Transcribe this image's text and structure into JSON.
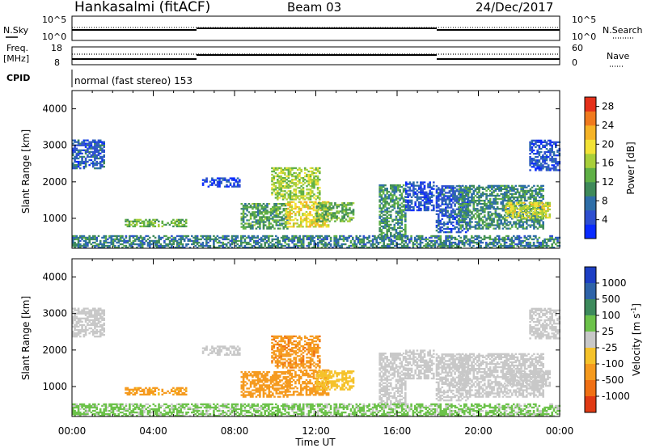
{
  "header": {
    "station": "Hankasalmi (fitACF)",
    "beam": "Beam 03",
    "date": "24/Dec/2017"
  },
  "status_panels": {
    "nsky_label": "N.Sky",
    "nsearch_label": "N.Search",
    "noise_ticks": [
      "10^5",
      "10^0"
    ],
    "freq_label_line1": "Freq.",
    "freq_label_line2": "[MHz]",
    "freq_ticks": [
      "18",
      "8"
    ],
    "nave_label": "Nave",
    "nave_ticks": [
      "60",
      "0"
    ],
    "cpid_label": "CPID",
    "cpid_text": "normal (fast stereo) 153"
  },
  "axes": {
    "xlabel": "Time UT",
    "ylabel": "Slant Range [km]",
    "xticks": [
      "00:00",
      "04:00",
      "08:00",
      "12:00",
      "16:00",
      "20:00",
      "00:00"
    ],
    "yticks": [
      "1000",
      "2000",
      "3000",
      "4000"
    ]
  },
  "colors": {
    "power": [
      "#0a2bff",
      "#2e4fd0",
      "#2e6ea8",
      "#3f8a5a",
      "#5fb046",
      "#a8cf3a",
      "#f2e236",
      "#f5b326",
      "#f07a1e",
      "#e5301a"
    ],
    "velocity": [
      "#1d3fc4",
      "#2e63a8",
      "#3d8a5c",
      "#6cc24a",
      "#c8c8c8",
      "#f5c22a",
      "#f59a1e",
      "#f07014",
      "#e03a14"
    ]
  },
  "power_colorbar": {
    "label": "Power [dB]",
    "ticks": [
      "4",
      "8",
      "12",
      "16",
      "20",
      "24",
      "28"
    ]
  },
  "velocity_colorbar": {
    "label": "Velocity [m s",
    "label_sup": "-1",
    "label_end": "]",
    "ticks": [
      "1000",
      "500",
      "100",
      "25",
      "-25",
      "-100",
      "-500",
      "-1000"
    ]
  },
  "chart_data": [
    {
      "type": "heatmap",
      "title": "Power",
      "x_unit": "hours UT",
      "y_unit": "km",
      "xlim": [
        0,
        24
      ],
      "ylim": [
        180,
        4500
      ],
      "value_unit": "dB",
      "regions": [
        {
          "t0": 0.0,
          "t1": 1.6,
          "r0": 2350,
          "r1": 3150,
          "val": 6
        },
        {
          "t0": 2.6,
          "t1": 5.6,
          "r0": 760,
          "r1": 950,
          "val": 14
        },
        {
          "t0": 6.4,
          "t1": 8.2,
          "r0": 1850,
          "r1": 2100,
          "val": 4
        },
        {
          "t0": 8.3,
          "t1": 10.6,
          "r0": 700,
          "r1": 1400,
          "val": 12
        },
        {
          "t0": 9.8,
          "t1": 12.2,
          "r0": 1500,
          "r1": 2400,
          "val": 16
        },
        {
          "t0": 10.5,
          "t1": 12.6,
          "r0": 750,
          "r1": 1450,
          "val": 20
        },
        {
          "t0": 12.0,
          "t1": 13.8,
          "r0": 900,
          "r1": 1400,
          "val": 13
        },
        {
          "t0": 15.1,
          "t1": 16.4,
          "r0": 400,
          "r1": 1900,
          "val": 11
        },
        {
          "t0": 16.4,
          "t1": 17.8,
          "r0": 1200,
          "r1": 2000,
          "val": 5
        },
        {
          "t0": 17.9,
          "t1": 19.5,
          "r0": 600,
          "r1": 1900,
          "val": 6
        },
        {
          "t0": 19.0,
          "t1": 23.2,
          "r0": 700,
          "r1": 1900,
          "val": 10
        },
        {
          "t0": 21.3,
          "t1": 23.5,
          "r0": 1000,
          "r1": 1450,
          "val": 18
        },
        {
          "t0": 22.5,
          "t1": 24.0,
          "r0": 2300,
          "r1": 3150,
          "val": 5
        },
        {
          "t0": 0.0,
          "t1": 24.0,
          "r0": 180,
          "r1": 500,
          "val": 9
        }
      ]
    },
    {
      "type": "heatmap",
      "title": "Velocity",
      "x_unit": "hours UT",
      "y_unit": "km",
      "xlim": [
        0,
        24
      ],
      "ylim": [
        180,
        4500
      ],
      "value_unit": "m s-1",
      "regions": [
        {
          "t0": 0.0,
          "t1": 1.6,
          "r0": 2350,
          "r1": 3150,
          "val": 0
        },
        {
          "t0": 2.6,
          "t1": 5.6,
          "r0": 760,
          "r1": 950,
          "val": -150
        },
        {
          "t0": 6.4,
          "t1": 8.2,
          "r0": 1850,
          "r1": 2100,
          "val": 0
        },
        {
          "t0": 8.3,
          "t1": 10.6,
          "r0": 700,
          "r1": 1400,
          "val": -200
        },
        {
          "t0": 9.8,
          "t1": 12.2,
          "r0": 1500,
          "r1": 2400,
          "val": -400
        },
        {
          "t0": 10.5,
          "t1": 12.6,
          "r0": 750,
          "r1": 1450,
          "val": -250
        },
        {
          "t0": 12.0,
          "t1": 13.8,
          "r0": 900,
          "r1": 1400,
          "val": -60
        },
        {
          "t0": 15.1,
          "t1": 16.4,
          "r0": 400,
          "r1": 1900,
          "val": 0
        },
        {
          "t0": 16.4,
          "t1": 17.8,
          "r0": 1200,
          "r1": 2000,
          "val": 0
        },
        {
          "t0": 17.9,
          "t1": 19.5,
          "r0": 600,
          "r1": 1900,
          "val": 0
        },
        {
          "t0": 19.0,
          "t1": 23.2,
          "r0": 700,
          "r1": 1900,
          "val": 0
        },
        {
          "t0": 21.3,
          "t1": 23.5,
          "r0": 1000,
          "r1": 1450,
          "val": 0
        },
        {
          "t0": 22.5,
          "t1": 24.0,
          "r0": 2300,
          "r1": 3150,
          "val": 0
        },
        {
          "t0": 0.0,
          "t1": 24.0,
          "r0": 180,
          "r1": 500,
          "val": 40
        }
      ]
    }
  ]
}
